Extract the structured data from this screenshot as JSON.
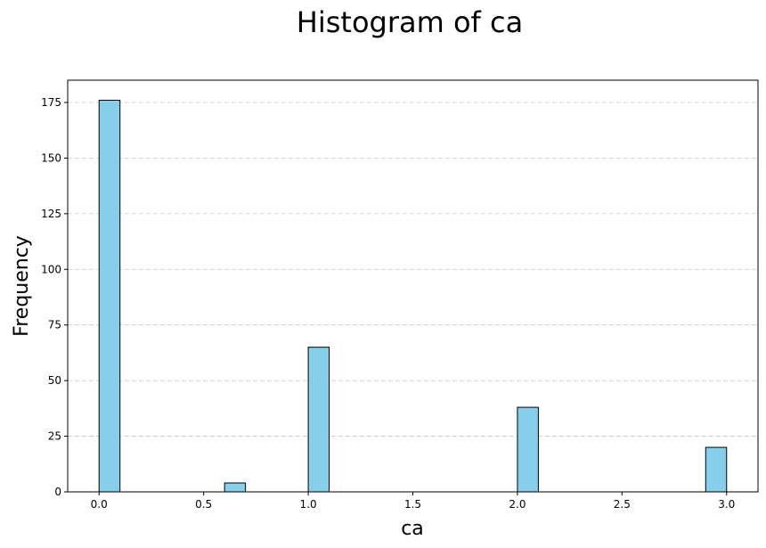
{
  "chart_data": {
    "type": "bar",
    "title": "Histogram of ca",
    "xlabel": "ca",
    "ylabel": "Frequency",
    "bar_color": "#87ceeb",
    "edge_color": "#000000",
    "grid": "y-dashed",
    "xlim": [
      -0.15,
      3.15
    ],
    "ylim": [
      0,
      185
    ],
    "xticks": [
      0.0,
      0.5,
      1.0,
      1.5,
      2.0,
      2.5,
      3.0
    ],
    "xtick_labels": [
      "0.0",
      "0.5",
      "1.0",
      "1.5",
      "2.0",
      "2.5",
      "3.0"
    ],
    "yticks": [
      0,
      25,
      50,
      75,
      100,
      125,
      150,
      175
    ],
    "ytick_labels": [
      "0",
      "25",
      "50",
      "75",
      "100",
      "125",
      "150",
      "175"
    ],
    "bins": [
      {
        "x0": 0.0,
        "x1": 0.1,
        "value": 176
      },
      {
        "x0": 0.6,
        "x1": 0.7,
        "value": 4
      },
      {
        "x0": 1.0,
        "x1": 1.1,
        "value": 65
      },
      {
        "x0": 2.0,
        "x1": 2.1,
        "value": 38
      },
      {
        "x0": 2.9,
        "x1": 3.0,
        "value": 20
      }
    ]
  }
}
